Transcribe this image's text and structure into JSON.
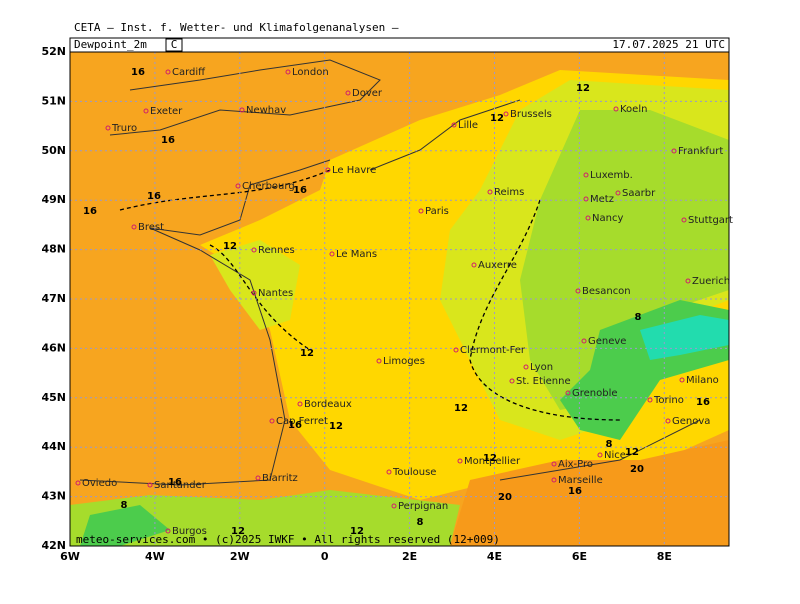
{
  "header": {
    "institute": "CETA — Inst. f. Wetter- und Klimafolgenanalysen —",
    "field": "Dewpoint_2m",
    "unit": "C",
    "valid": "17.07.2025 21 UTC"
  },
  "axes": {
    "lat": [
      "52N",
      "51N",
      "50N",
      "49N",
      "48N",
      "47N",
      "46N",
      "45N",
      "44N",
      "43N",
      "42N"
    ],
    "lon": [
      "6W",
      "4W",
      "2W",
      "0",
      "2E",
      "4E",
      "6E",
      "8E"
    ]
  },
  "cities": [
    "Cardiff",
    "London",
    "Dover",
    "Exeter",
    "Newhav",
    "Truro",
    "Lille",
    "Brussels",
    "Koeln",
    "Frankfurt",
    "Le Havre",
    "Cherbourg",
    "Luxemb.",
    "Reims",
    "Saarbr",
    "Metz",
    "Paris",
    "Nancy",
    "Stuttgart",
    "Brest",
    "Rennes",
    "Le Mans",
    "Auxerre",
    "Zuerich",
    "Nantes",
    "Besancon",
    "Geneve",
    "Clermont-Fer",
    "Limoges",
    "Lyon",
    "St. Etienne",
    "Milano",
    "Grenoble",
    "Bordeaux",
    "Torino",
    "Cap Ferret",
    "Genova",
    "Nice",
    "Montpellier",
    "Aix-Pro",
    "Toulouse",
    "Biarritz",
    "Marseille",
    "Oviedo",
    "Santander",
    "Perpignan",
    "Burgos"
  ],
  "contours": [
    "16",
    "16",
    "16",
    "16",
    "12",
    "16",
    "12",
    "16",
    "12",
    "12",
    "12",
    "12",
    "12",
    "12",
    "12",
    "8",
    "12",
    "8",
    "20",
    "20",
    "16",
    "16",
    "16",
    "8",
    "8"
  ],
  "footer": "meteo-services.com • (c)2025 IWKF • All rights reserved (12+009)"
}
